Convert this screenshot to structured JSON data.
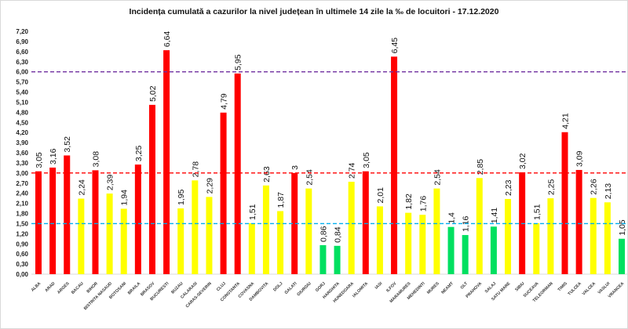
{
  "chart_data": {
    "type": "bar",
    "title": "Incidența cumulată a cazurilor la nivel județean în ultimele 14 zile la ‰ de locuitori - 17.12.2020",
    "xlabel": "",
    "ylabel": "",
    "ylim": [
      0,
      7.2
    ],
    "ytick_step": 0.3,
    "grid": false,
    "legend": "none",
    "categories": [
      "ALBA",
      "ARAD",
      "ARGES",
      "BACAU",
      "BIHOR",
      "BISTRITA NASAUD",
      "BOTOSANI",
      "BRAILA",
      "BRASOV",
      "BUCURESTI",
      "BUZAU",
      "CALARASI",
      "CARAS-SEVERIN",
      "CLUJ",
      "CONSTANTA",
      "COVASNA",
      "DAMBOVITA",
      "DOLJ",
      "GALATI",
      "GIURGIU",
      "GORJ",
      "HARGHITA",
      "HUNEDOARA",
      "IALOMITA",
      "IASI",
      "ILFOV",
      "MARAMURES",
      "MEHEDINTI",
      "MURES",
      "NEAMT",
      "OLT",
      "PRAHOVA",
      "SALAJ",
      "SATU MARE",
      "SIBIU",
      "SUCEAVA",
      "TELEORMAN",
      "TIMIS",
      "TULCEA",
      "VALCEA",
      "VASLUI",
      "VRANCEA"
    ],
    "values": [
      3.05,
      3.16,
      3.52,
      2.24,
      3.08,
      2.39,
      1.94,
      3.25,
      5.02,
      6.64,
      1.95,
      2.78,
      2.29,
      4.79,
      5.95,
      1.51,
      2.63,
      1.87,
      3,
      2.54,
      0.86,
      0.84,
      2.74,
      3.05,
      2.01,
      6.45,
      1.82,
      1.76,
      2.54,
      1.4,
      1.16,
      2.85,
      1.41,
      2.23,
      3.02,
      1.51,
      2.25,
      4.21,
      3.09,
      2.26,
      2.13,
      1.05
    ],
    "data_labels": [
      "3,05",
      "3,16",
      "3,52",
      "2,24",
      "3,08",
      "2,39",
      "1,94",
      "3,25",
      "5,02",
      "6,64",
      "1,95",
      "2,78",
      "2,29",
      "4,79",
      "5,95",
      "1,51",
      "2,63",
      "1,87",
      "3",
      "2,54",
      "0,86",
      "0,84",
      "2,74",
      "3,05",
      "2,01",
      "6,45",
      "1,82",
      "1,76",
      "2,54",
      "1,4",
      "1,16",
      "2,85",
      "1,41",
      "2,23",
      "3,02",
      "1,51",
      "2,25",
      "4,21",
      "3,09",
      "2,26",
      "2,13",
      "1,05"
    ],
    "color_rule": [
      {
        "min": 3.0,
        "color": "#ff0000"
      },
      {
        "min": 1.5,
        "color": "#ffff00"
      },
      {
        "min": 0,
        "color": "#00e060"
      }
    ],
    "reference_lines": [
      {
        "value": 6.0,
        "color": "#7030a0"
      },
      {
        "value": 3.0,
        "color": "#ff0000"
      },
      {
        "value": 1.5,
        "color": "#00b0f0"
      }
    ]
  }
}
